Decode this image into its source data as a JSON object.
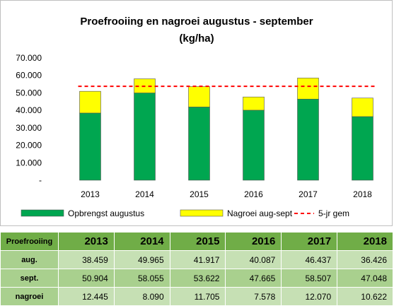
{
  "chart_data": {
    "type": "bar",
    "stacked": true,
    "title": [
      "Proefrooiing en nagroei augustus - september",
      "(kg/ha)"
    ],
    "categories": [
      "2013",
      "2014",
      "2015",
      "2016",
      "2017",
      "2018"
    ],
    "series": [
      {
        "name": "Opbrengst augustus",
        "type": "bar",
        "color": "#00a650",
        "values": [
          38459,
          49965,
          41917,
          40087,
          46437,
          36426
        ]
      },
      {
        "name": "Nagroei aug-sept",
        "type": "bar",
        "color": "#ffff00",
        "values": [
          12445,
          8090,
          11705,
          7578,
          12070,
          10622
        ]
      },
      {
        "name": "5-jr gem",
        "type": "line",
        "style": "dashed",
        "color": "#ff0000",
        "values": [
          53760,
          53760,
          53760,
          53760,
          53760,
          53760
        ]
      }
    ],
    "yticks": [
      "-",
      "10.000",
      "20.000",
      "30.000",
      "40.000",
      "50.000",
      "60.000",
      "70.000"
    ],
    "ylim": [
      0,
      70000
    ],
    "grid": false,
    "legend_position": "bottom"
  },
  "table": {
    "header_label": "Proefrooiing",
    "years": [
      "2013",
      "2014",
      "2015",
      "2016",
      "2017",
      "2018"
    ],
    "rows": [
      {
        "label": "aug.",
        "values": [
          "38.459",
          "49.965",
          "41.917",
          "40.087",
          "46.437",
          "36.426"
        ]
      },
      {
        "label": "sept.",
        "values": [
          "50.904",
          "58.055",
          "53.622",
          "47.665",
          "58.507",
          "47.048"
        ]
      },
      {
        "label": "nagroei",
        "values": [
          "12.445",
          "8.090",
          "11.705",
          "7.578",
          "12.070",
          "10.622"
        ]
      }
    ]
  }
}
